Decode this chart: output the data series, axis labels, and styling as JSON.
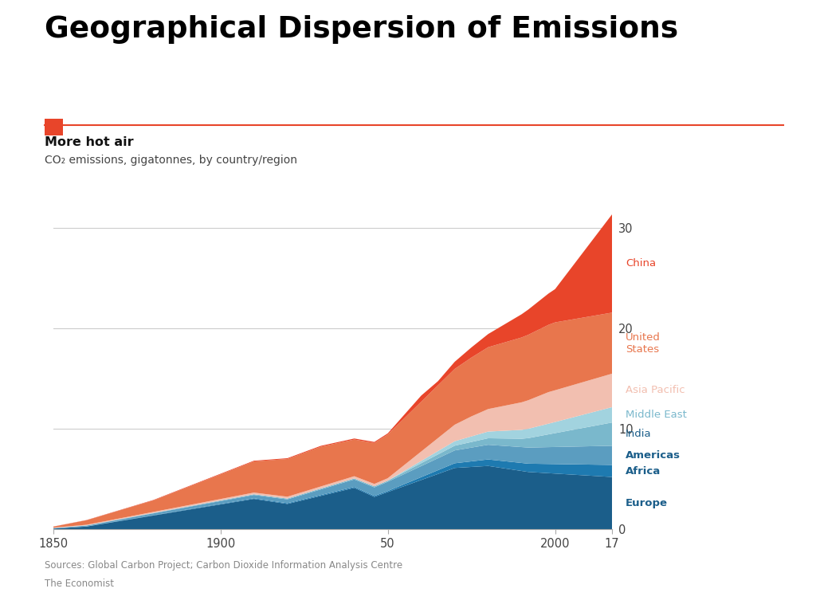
{
  "title": "Geographical Dispersion of Emissions",
  "subtitle": "More hot air",
  "subtitle2": "CO₂ emissions, gigatonnes, by country/region",
  "source": "Sources: Global Carbon Project; Carbon Dioxide Information Analysis Centre",
  "credit": "The Economist",
  "year_start": 1850,
  "year_end": 2017,
  "ylim": [
    0,
    35
  ],
  "yticks": [
    0,
    10,
    20,
    30
  ],
  "xtick_labels": [
    "1850",
    "1900",
    "50",
    "2000",
    "17"
  ],
  "xtick_positions": [
    1850,
    1900,
    1950,
    2000,
    2017
  ],
  "regions": [
    "Europe",
    "Africa",
    "Americas",
    "India",
    "Middle East",
    "Asia Pacific",
    "United States",
    "China"
  ],
  "region_labels": [
    "Europe",
    "Africa",
    "Americas",
    "India",
    "Middle East",
    "Asia Pacific",
    "United\nStates",
    "China"
  ],
  "colors": [
    "#1b5e8a",
    "#1e7ab0",
    "#5b9dc0",
    "#7ab8cc",
    "#a2d3df",
    "#f2bfb0",
    "#e8764d",
    "#e8452a"
  ],
  "label_colors": [
    "#1b5e8a",
    "#1b5e8a",
    "#1b5e8a",
    "#1b5e8a",
    "#7ab8cc",
    "#f2bfb0",
    "#e8764d",
    "#e8452a"
  ],
  "label_bold": [
    true,
    true,
    true,
    false,
    false,
    false,
    false,
    false
  ],
  "background_color": "#ffffff",
  "red_color": "#e8452a",
  "title_color": "#000000",
  "grid_color": "#cccccc",
  "source_color": "#888888"
}
